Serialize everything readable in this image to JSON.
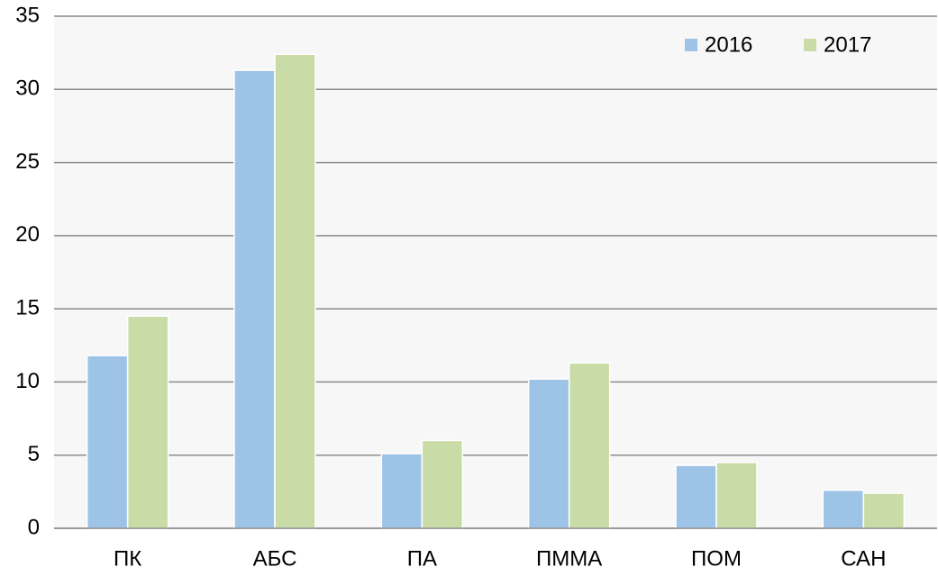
{
  "chart_data": {
    "type": "bar",
    "categories": [
      "ПК",
      "АБС",
      "ПА",
      "ПММА",
      "ПОМ",
      "САН"
    ],
    "series": [
      {
        "name": "2016",
        "color": "#9dc3e6",
        "values": [
          11.8,
          31.3,
          5.1,
          10.2,
          4.3,
          2.6
        ]
      },
      {
        "name": "2017",
        "color": "#c9dba6",
        "values": [
          14.5,
          32.4,
          6.0,
          11.3,
          4.5,
          2.4
        ]
      }
    ],
    "ylim": [
      0,
      35
    ],
    "yticks": [
      0,
      5,
      10,
      15,
      20,
      25,
      30,
      35
    ],
    "grid": true,
    "legend": "top-right"
  }
}
